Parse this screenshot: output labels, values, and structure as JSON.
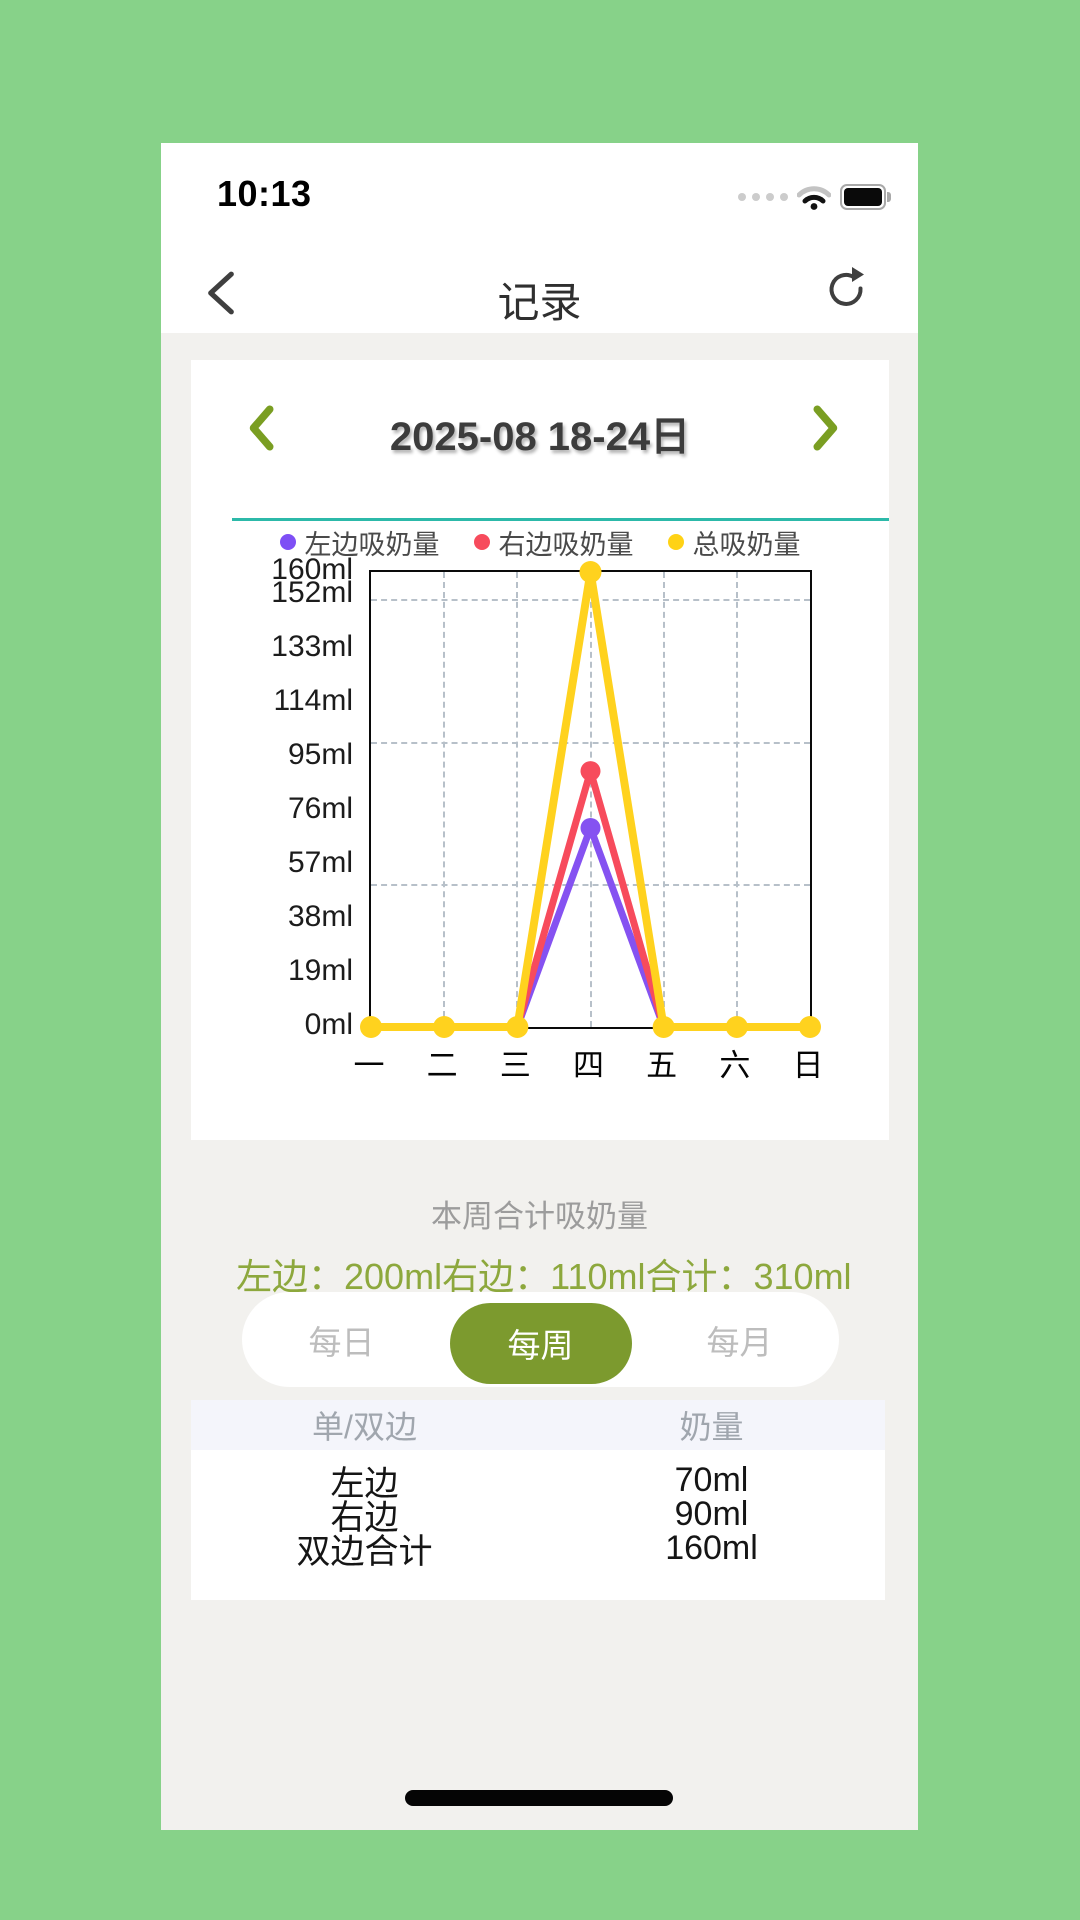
{
  "status_bar": {
    "time": "10:13",
    "icons": [
      "cellular-signal-dots",
      "wifi-icon",
      "battery-icon"
    ]
  },
  "nav": {
    "title": "记录",
    "back_icon": "chevron-left",
    "refresh_icon": "refresh-arrow"
  },
  "chart_card": {
    "date_range": "2025-08 18-24日",
    "prev_icon": "chevron-left",
    "next_icon": "chevron-right",
    "accent_chevron_color": "#7a9e22",
    "divider_color": "#2cb9a9",
    "legend": [
      {
        "label": "左边吸奶量",
        "color": "#7e4ff5"
      },
      {
        "label": "右边吸奶量",
        "color": "#f74b5c"
      },
      {
        "label": "总吸奶量",
        "color": "#ffd215"
      }
    ]
  },
  "chart_data": {
    "type": "line",
    "title": "",
    "categories": [
      "一",
      "二",
      "三",
      "四",
      "五",
      "六",
      "日"
    ],
    "series": [
      {
        "name": "左边吸奶量",
        "color": "#8552f1",
        "values": [
          0,
          0,
          0,
          70,
          0,
          0,
          0
        ]
      },
      {
        "name": "右边吸奶量",
        "color": "#f74b5c",
        "values": [
          0,
          0,
          0,
          90,
          0,
          0,
          0
        ]
      },
      {
        "name": "总吸奶量",
        "color": "#ffd21e",
        "values": [
          0,
          0,
          0,
          160,
          0,
          0,
          0
        ]
      }
    ],
    "ylim": [
      0,
      160
    ],
    "y_ticks": [
      {
        "value": 160,
        "label": "160ml"
      },
      {
        "value": 152,
        "label": "152ml"
      },
      {
        "value": 133,
        "label": "133ml"
      },
      {
        "value": 114,
        "label": "114ml"
      },
      {
        "value": 95,
        "label": "95ml"
      },
      {
        "value": 76,
        "label": "76ml"
      },
      {
        "value": 57,
        "label": "57ml"
      },
      {
        "value": 38,
        "label": "38ml"
      },
      {
        "value": 19,
        "label": "19ml"
      },
      {
        "value": 0,
        "label": "0ml"
      }
    ],
    "h_gridlines": [
      50,
      100,
      150
    ],
    "grid": "dashed",
    "legend_position": "top"
  },
  "summary": {
    "title": "本周合计吸奶量",
    "items": [
      {
        "label": "左边：",
        "value": "200ml"
      },
      {
        "label": "右边：",
        "value": "110ml"
      },
      {
        "label": "合计：",
        "value": "310ml"
      }
    ],
    "value_color": "#8da83d"
  },
  "tabs": {
    "options": [
      {
        "label": "每日"
      },
      {
        "label": "每周"
      },
      {
        "label": "每月"
      }
    ],
    "selected": "每周",
    "selected_bg": "#7c9a2e"
  },
  "table": {
    "headers": [
      "单/双边",
      "奶量"
    ],
    "rows": [
      {
        "side": "左边",
        "amount": "70ml"
      },
      {
        "side": "右边",
        "amount": "90ml"
      },
      {
        "side": "双边合计",
        "amount": "160ml"
      }
    ]
  }
}
